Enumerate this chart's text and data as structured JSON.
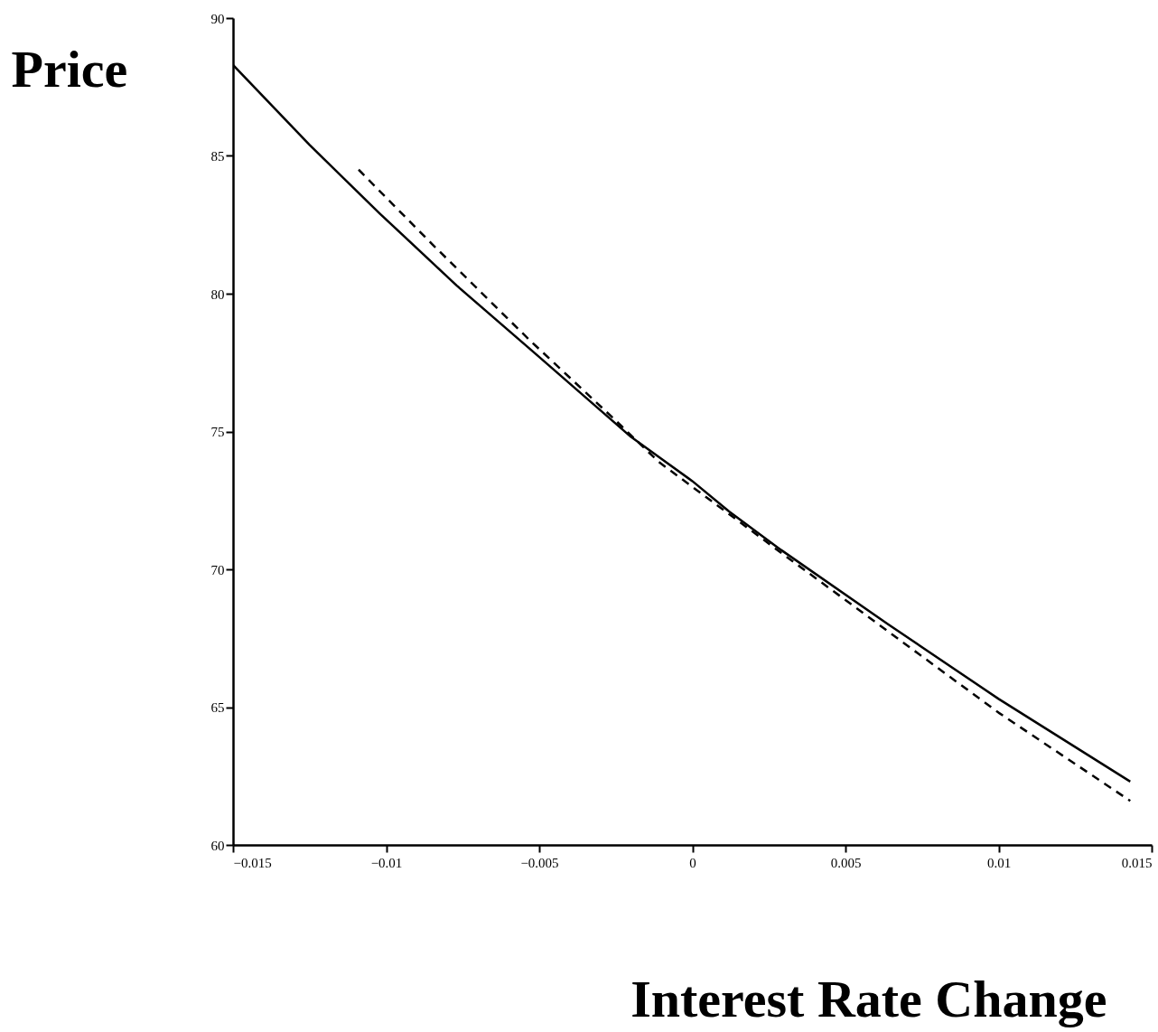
{
  "chart_data": {
    "type": "line",
    "xlabel": "Interest Rate Change",
    "ylabel": "Price",
    "xlim": [
      -0.015,
      0.015
    ],
    "ylim": [
      60,
      90
    ],
    "xticks": [
      -0.015,
      -0.01,
      -0.005,
      0,
      0.005,
      0.01,
      0.015
    ],
    "yticks": [
      60,
      65,
      70,
      75,
      80,
      85,
      90
    ],
    "series": [
      {
        "color": "#000000",
        "line_style": "solid",
        "x": [
          -0.015,
          -0.0125,
          -0.0114,
          -0.0102,
          -0.0077,
          -0.0051,
          -0.002,
          0,
          0.0012,
          0.0029,
          0.0064,
          0.01,
          0.0143
        ],
        "values": [
          88.3,
          85.4,
          84.2,
          82.9,
          80.3,
          77.8,
          74.8,
          73.2,
          72.1,
          70.7,
          68.0,
          65.3,
          62.3
        ]
      },
      {
        "color": "#000000",
        "line_style": "dashed",
        "x": [
          -0.0109,
          -0.0085,
          -0.0053,
          -0.0026,
          -0.0011,
          0.0029,
          0.01,
          0.0143
        ],
        "values": [
          84.5,
          81.8,
          78.3,
          75.5,
          73.9,
          70.6,
          64.8,
          61.6
        ]
      }
    ]
  }
}
